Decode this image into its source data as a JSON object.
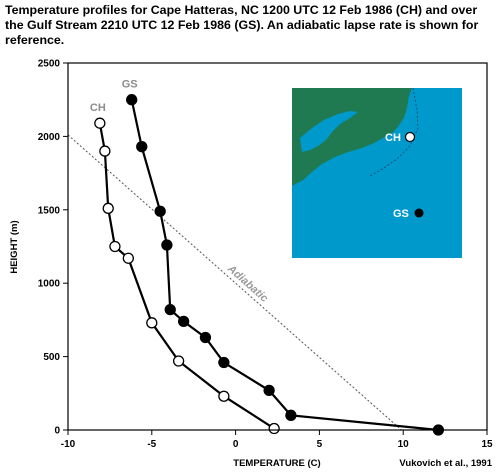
{
  "title": "Temperature profiles for Cape Hatteras, NC 1200 UTC  12 Feb 1986 (CH) and over the Gulf Stream 2210 UTC  12 Feb 1986 (GS). An adiabatic lapse rate is shown for reference.",
  "credit": "Vukovich et al., 1991",
  "colors": {
    "ocean": "#0099cc",
    "land": "#1f7a52",
    "gs_fill": "#000000",
    "ch_fill": "#ffffff"
  },
  "chart_data": {
    "type": "line",
    "xlabel": "TEMPERATURE (C)",
    "ylabel": "HEIGHT (m)",
    "xlim": [
      -10,
      15
    ],
    "ylim": [
      0,
      2500
    ],
    "xticks": [
      -10,
      -5,
      0,
      5,
      10,
      15
    ],
    "yticks": [
      0,
      500,
      1000,
      1500,
      2000,
      2500
    ],
    "grid": false,
    "series": [
      {
        "name": "GS",
        "marker": "filled-circle",
        "points": [
          [
            12.1,
            0
          ],
          [
            3.3,
            100
          ],
          [
            2.0,
            270
          ],
          [
            -0.7,
            460
          ],
          [
            -1.8,
            630
          ],
          [
            -3.1,
            740
          ],
          [
            -3.9,
            820
          ],
          [
            -4.1,
            1260
          ],
          [
            -4.5,
            1490
          ],
          [
            -5.6,
            1930
          ],
          [
            -6.2,
            2250
          ]
        ]
      },
      {
        "name": "CH",
        "marker": "open-circle",
        "points": [
          [
            2.3,
            10
          ],
          [
            -0.7,
            230
          ],
          [
            -3.4,
            470
          ],
          [
            -5.0,
            730
          ],
          [
            -6.4,
            1170
          ],
          [
            -7.2,
            1250
          ],
          [
            -7.6,
            1510
          ],
          [
            -7.8,
            1900
          ],
          [
            -8.1,
            2090
          ]
        ]
      }
    ],
    "reference_line": {
      "name": "Adiabatic",
      "points": [
        [
          -10,
          2010
        ],
        [
          9.9,
          0
        ]
      ]
    },
    "inset_map": {
      "labels": [
        "CH",
        "GS"
      ]
    }
  }
}
